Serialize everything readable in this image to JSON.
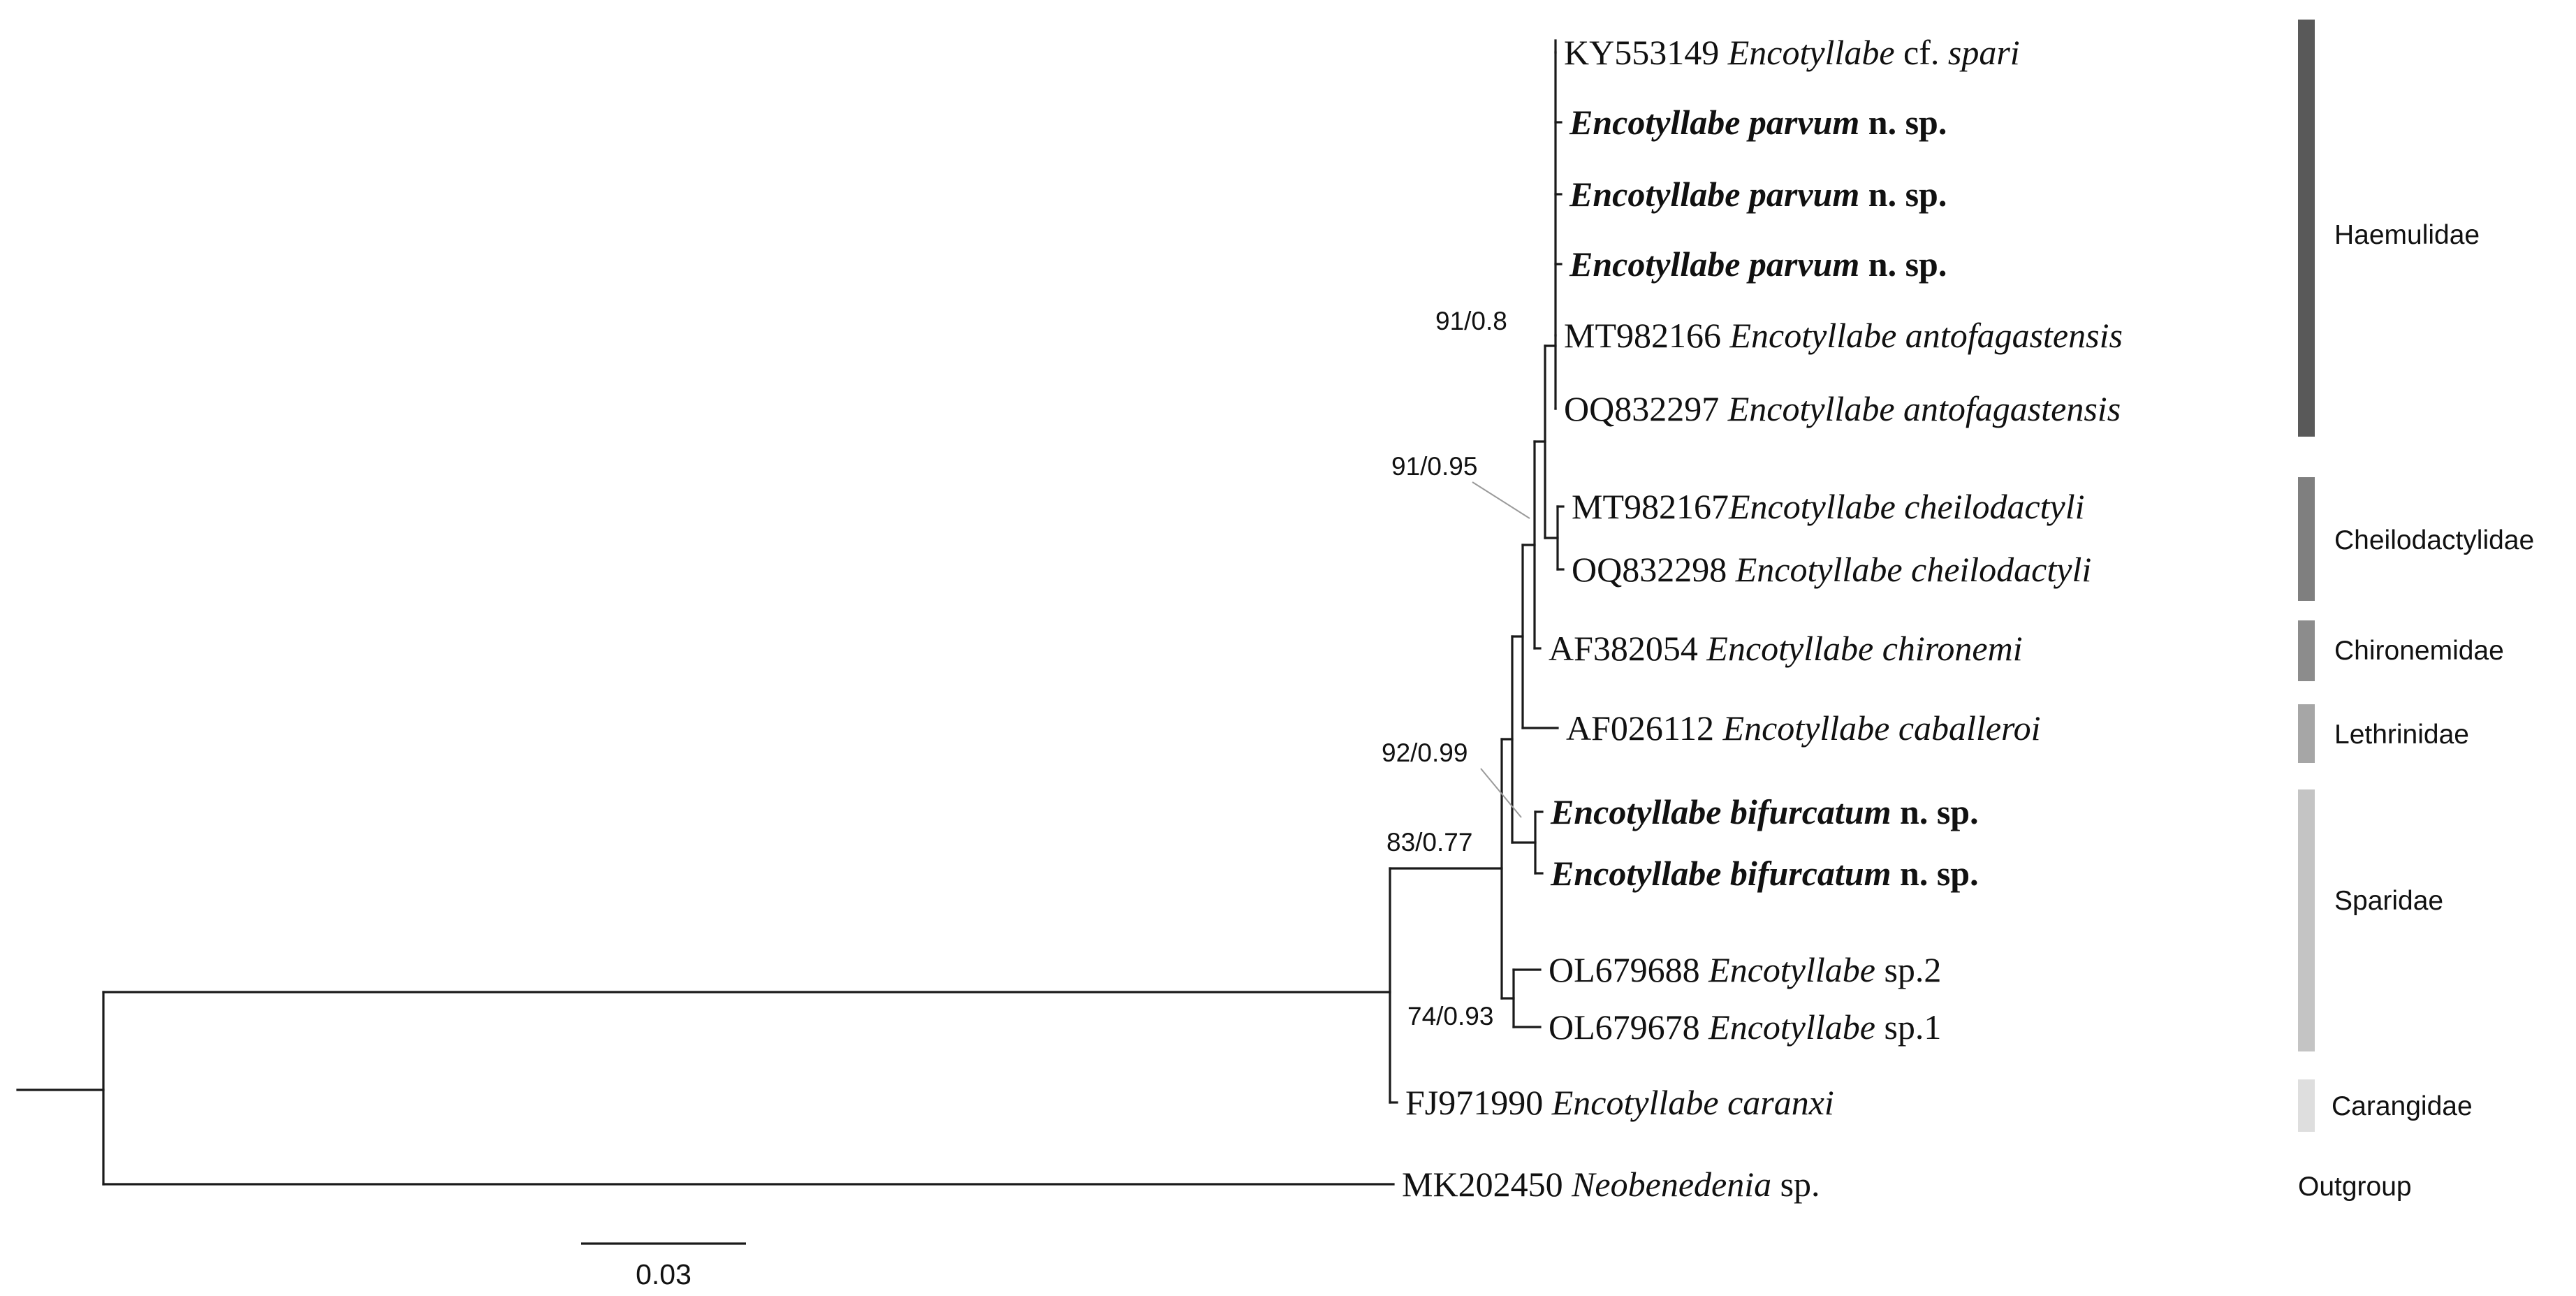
{
  "tips": [
    {
      "accession": "KY553149",
      "genus": "Encotyllabe",
      "qualifier": "cf.",
      "epithet": "spari",
      "suffix": "",
      "bold": false
    },
    {
      "accession": "",
      "genus": "Encotyllabe",
      "qualifier": "",
      "epithet": "parvum",
      "suffix": "n. sp.",
      "bold": true
    },
    {
      "accession": "",
      "genus": "Encotyllabe",
      "qualifier": "",
      "epithet": "parvum",
      "suffix": "n. sp.",
      "bold": true
    },
    {
      "accession": "",
      "genus": "Encotyllabe",
      "qualifier": "",
      "epithet": "parvum",
      "suffix": "n. sp.",
      "bold": true
    },
    {
      "accession": "MT982166",
      "genus": "Encotyllabe",
      "qualifier": "",
      "epithet": "antofagastensis",
      "suffix": "",
      "bold": false
    },
    {
      "accession": "OQ832297",
      "genus": "Encotyllabe",
      "qualifier": "",
      "epithet": "antofagastensis",
      "suffix": "",
      "bold": false
    },
    {
      "accession": "MT982167",
      "genus": "Encotyllabe",
      "qualifier": "",
      "epithet": "cheilodactyli",
      "suffix": "",
      "bold": false
    },
    {
      "accession": "OQ832298",
      "genus": "Encotyllabe",
      "qualifier": "",
      "epithet": "cheilodactyli",
      "suffix": "",
      "bold": false
    },
    {
      "accession": "AF382054",
      "genus": "Encotyllabe",
      "qualifier": "",
      "epithet": "chironemi",
      "suffix": "",
      "bold": false
    },
    {
      "accession": "AF026112",
      "genus": "Encotyllabe",
      "qualifier": "",
      "epithet": "caballeroi",
      "suffix": "",
      "bold": false
    },
    {
      "accession": "",
      "genus": "Encotyllabe",
      "qualifier": "",
      "epithet": "bifurcatum",
      "suffix": "n. sp.",
      "bold": true
    },
    {
      "accession": "",
      "genus": "Encotyllabe",
      "qualifier": "",
      "epithet": "bifurcatum",
      "suffix": "n. sp.",
      "bold": true
    },
    {
      "accession": "OL679688",
      "genus": "Encotyllabe",
      "qualifier": "",
      "epithet": "",
      "suffix": "sp.2",
      "bold": false
    },
    {
      "accession": "OL679678",
      "genus": "Encotyllabe",
      "qualifier": "",
      "epithet": "",
      "suffix": "sp.1",
      "bold": false
    },
    {
      "accession": "FJ971990",
      "genus": "Encotyllabe",
      "qualifier": "",
      "epithet": "caranxi",
      "suffix": "",
      "bold": false
    },
    {
      "accession": "MK202450",
      "genus": "Neobenedenia",
      "qualifier": "",
      "epithet": "",
      "suffix": "sp.",
      "bold": false
    }
  ],
  "support_values": [
    "91/0.8",
    "91/0.95",
    "92/0.99",
    "83/0.77",
    "74/0.93"
  ],
  "host_groups": [
    {
      "name": "Haemulidae",
      "color": "#595959"
    },
    {
      "name": "Cheilodactylidae",
      "color": "#7f7f7f"
    },
    {
      "name": "Chironemidae",
      "color": "#8c8c8c"
    },
    {
      "name": "Lethrinidae",
      "color": "#a6a6a6"
    },
    {
      "name": "Sparidae",
      "color": "#c4c4c4"
    },
    {
      "name": "Carangidae",
      "color": "#dedede"
    },
    {
      "name": "Outgroup",
      "color": ""
    }
  ],
  "scale_bar": {
    "label": "0.03"
  }
}
